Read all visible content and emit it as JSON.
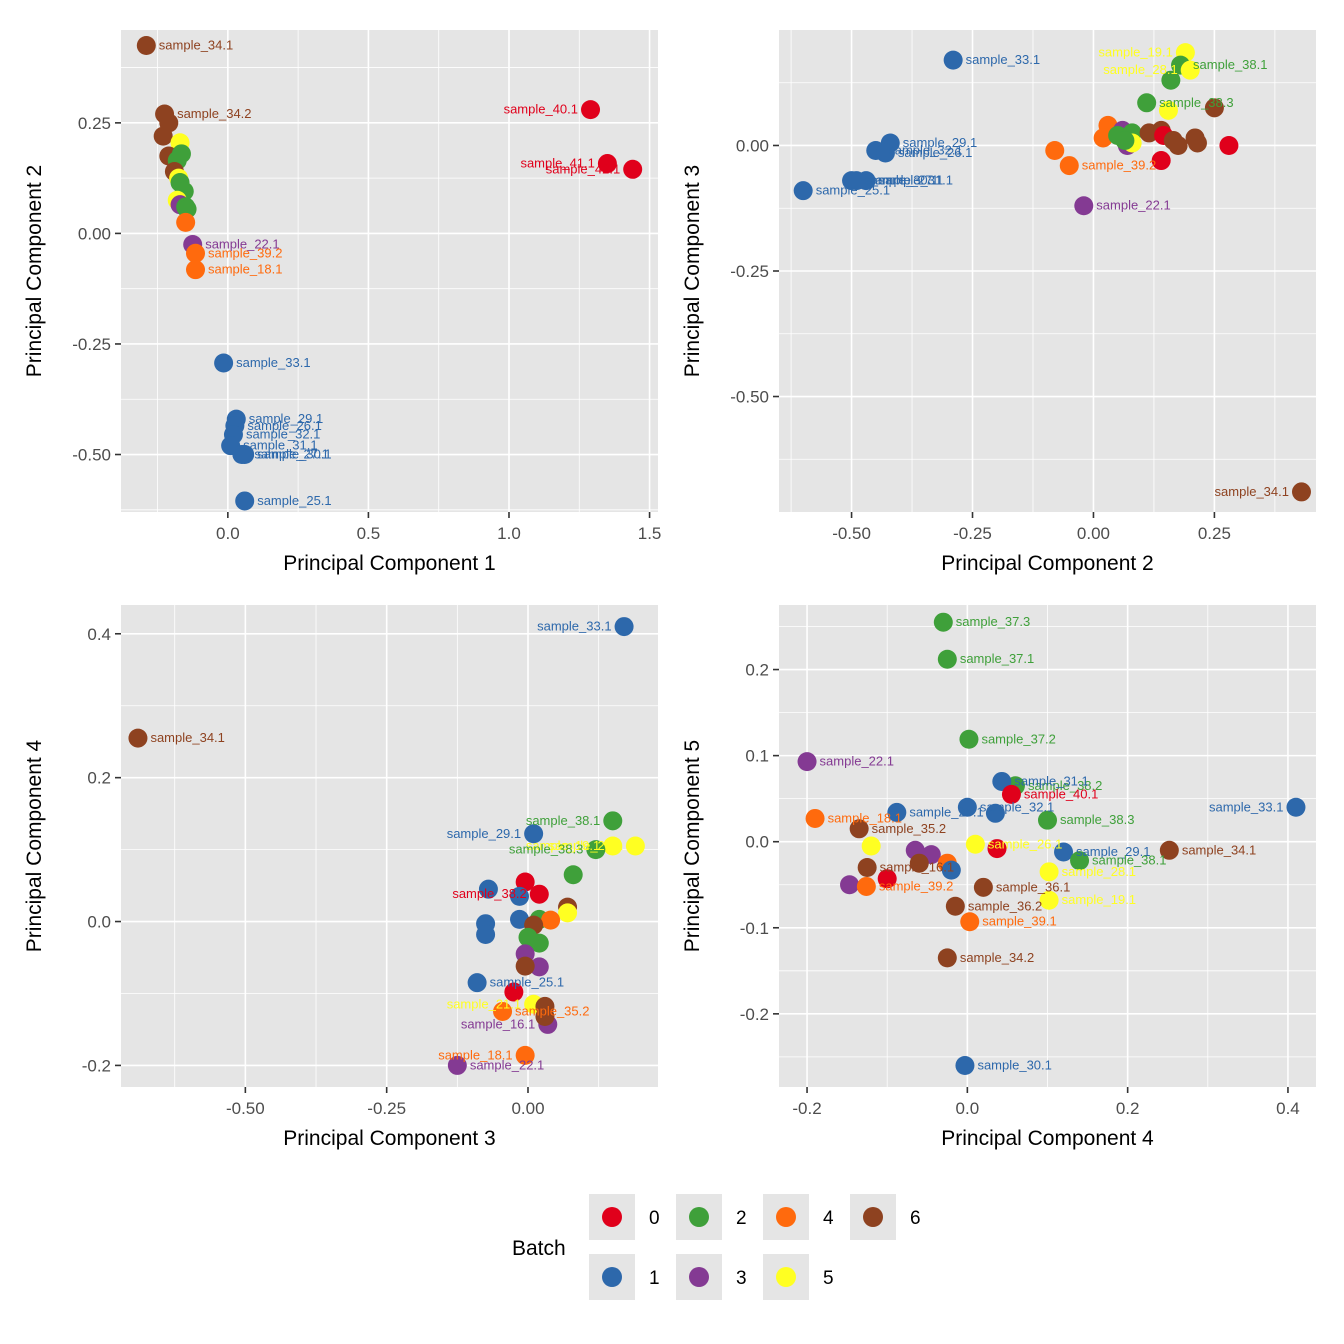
{
  "palette": {
    "0": "#e0001b",
    "1": "#2d68ab",
    "2": "#3fa03a",
    "3": "#843a93",
    "4": "#ff6a0d",
    "5": "#ffff22",
    "6": "#8e4220"
  },
  "legend": {
    "title": "Batch",
    "entries": [
      {
        "label": "0",
        "batch": "0"
      },
      {
        "label": "2",
        "batch": "2"
      },
      {
        "label": "4",
        "batch": "4"
      },
      {
        "label": "6",
        "batch": "6"
      },
      {
        "label": "1",
        "batch": "1"
      },
      {
        "label": "3",
        "batch": "3"
      },
      {
        "label": "5",
        "batch": "5"
      }
    ],
    "position": "bottom"
  },
  "chart_data": [
    {
      "type": "scatter",
      "title": "",
      "xlabel": "Principal Component 1",
      "ylabel": "Principal Component 2",
      "xlim": [
        -0.38,
        1.53
      ],
      "ylim": [
        -0.63,
        0.46
      ],
      "xticks": [
        0.0,
        0.5,
        1.0,
        1.5
      ],
      "xtick_labels": [
        "0.0",
        "0.5",
        "1.0",
        "1.5"
      ],
      "yticks": [
        -0.5,
        -0.25,
        0.0,
        0.25
      ],
      "ytick_labels": [
        "-0.50",
        "-0.25",
        "0.00",
        "0.25"
      ],
      "grid": true,
      "points": [
        {
          "x": -0.29,
          "y": 0.425,
          "batch": "6",
          "label": "sample_34.1"
        },
        {
          "x": -0.225,
          "y": 0.27,
          "batch": "6",
          "label": "sample_34.2"
        },
        {
          "x": -0.21,
          "y": 0.25,
          "batch": "6"
        },
        {
          "x": -0.23,
          "y": 0.22,
          "batch": "6"
        },
        {
          "x": -0.17,
          "y": 0.205,
          "batch": "5"
        },
        {
          "x": -0.21,
          "y": 0.175,
          "batch": "6"
        },
        {
          "x": -0.165,
          "y": 0.18,
          "batch": "2"
        },
        {
          "x": -0.18,
          "y": 0.165,
          "batch": "2"
        },
        {
          "x": -0.19,
          "y": 0.14,
          "batch": "6"
        },
        {
          "x": -0.175,
          "y": 0.125,
          "batch": "5"
        },
        {
          "x": -0.17,
          "y": 0.115,
          "batch": "2"
        },
        {
          "x": -0.155,
          "y": 0.095,
          "batch": "2"
        },
        {
          "x": -0.18,
          "y": 0.075,
          "batch": "5"
        },
        {
          "x": -0.17,
          "y": 0.065,
          "batch": "3"
        },
        {
          "x": -0.15,
          "y": 0.06,
          "batch": "2"
        },
        {
          "x": -0.145,
          "y": 0.055,
          "batch": "2"
        },
        {
          "x": -0.15,
          "y": 0.025,
          "batch": "4"
        },
        {
          "x": -0.125,
          "y": -0.025,
          "batch": "3",
          "label": "sample_22.1"
        },
        {
          "x": -0.115,
          "y": -0.045,
          "batch": "4",
          "label": "sample_39.2"
        },
        {
          "x": -0.115,
          "y": -0.082,
          "batch": "4",
          "label": "sample_18.1"
        },
        {
          "x": 1.29,
          "y": 0.28,
          "batch": "0",
          "label": "sample_40.1"
        },
        {
          "x": 1.35,
          "y": 0.158,
          "batch": "0",
          "label": "sample_41.1"
        },
        {
          "x": 1.44,
          "y": 0.145,
          "batch": "0",
          "label": "sample_42.1"
        },
        {
          "x": -0.015,
          "y": -0.293,
          "batch": "1",
          "label": "sample_33.1"
        },
        {
          "x": 0.03,
          "y": -0.42,
          "batch": "1",
          "label": "sample_29.1"
        },
        {
          "x": 0.025,
          "y": -0.435,
          "batch": "1",
          "label": "sample_26.1"
        },
        {
          "x": 0.02,
          "y": -0.455,
          "batch": "1",
          "label": "sample_32.1"
        },
        {
          "x": 0.01,
          "y": -0.48,
          "batch": "1",
          "label": "sample_31.1"
        },
        {
          "x": 0.05,
          "y": -0.5,
          "batch": "1",
          "label": "sample_27.1"
        },
        {
          "x": 0.06,
          "y": -0.5,
          "batch": "1",
          "label": "sample_30.1"
        },
        {
          "x": 0.06,
          "y": -0.605,
          "batch": "1",
          "label": "sample_25.1"
        }
      ]
    },
    {
      "type": "scatter",
      "title": "",
      "xlabel": "Principal Component 2",
      "ylabel": "Principal Component 3",
      "xlim": [
        -0.65,
        0.46
      ],
      "ylim": [
        -0.73,
        0.23
      ],
      "xticks": [
        -0.5,
        -0.25,
        0.0,
        0.25
      ],
      "xtick_labels": [
        "-0.50",
        "-0.25",
        "0.00",
        "0.25"
      ],
      "yticks": [
        -0.5,
        -0.25,
        0.0
      ],
      "ytick_labels": [
        "-0.50",
        "-0.25",
        "0.00"
      ],
      "grid": true,
      "points": [
        {
          "x": -0.29,
          "y": 0.17,
          "batch": "1",
          "label": "sample_33.1"
        },
        {
          "x": -0.42,
          "y": 0.005,
          "batch": "1",
          "label": "sample_29.1"
        },
        {
          "x": -0.45,
          "y": -0.01,
          "batch": "1",
          "label": "sample_32.1"
        },
        {
          "x": -0.43,
          "y": -0.015,
          "batch": "1",
          "label": "sample_26.1"
        },
        {
          "x": -0.49,
          "y": -0.07,
          "batch": "1",
          "label": "sample_27.1"
        },
        {
          "x": -0.47,
          "y": -0.07,
          "batch": "1",
          "label": "sample_31.1"
        },
        {
          "x": -0.5,
          "y": -0.07,
          "batch": "1",
          "label": "sample_30.1"
        },
        {
          "x": -0.6,
          "y": -0.09,
          "batch": "1",
          "label": "sample_25.1"
        },
        {
          "x": 0.19,
          "y": 0.185,
          "batch": "5",
          "label": "sample_19.1"
        },
        {
          "x": 0.18,
          "y": 0.16,
          "batch": "2",
          "label": "sample_38.1"
        },
        {
          "x": 0.2,
          "y": 0.15,
          "batch": "5",
          "label": "sample_28.1"
        },
        {
          "x": 0.16,
          "y": 0.13,
          "batch": "2"
        },
        {
          "x": 0.11,
          "y": 0.085,
          "batch": "2",
          "label": "sample_38.3"
        },
        {
          "x": 0.155,
          "y": 0.07,
          "batch": "5"
        },
        {
          "x": 0.25,
          "y": 0.075,
          "batch": "6"
        },
        {
          "x": 0.03,
          "y": 0.04,
          "batch": "4"
        },
        {
          "x": 0.02,
          "y": 0.015,
          "batch": "4"
        },
        {
          "x": 0.06,
          "y": 0.03,
          "batch": "3"
        },
        {
          "x": 0.05,
          "y": 0.02,
          "batch": "2"
        },
        {
          "x": 0.08,
          "y": 0.025,
          "batch": "2"
        },
        {
          "x": 0.07,
          "y": 0.0,
          "batch": "3"
        },
        {
          "x": 0.08,
          "y": 0.005,
          "batch": "5"
        },
        {
          "x": 0.065,
          "y": 0.01,
          "batch": "2"
        },
        {
          "x": 0.115,
          "y": 0.025,
          "batch": "6"
        },
        {
          "x": 0.14,
          "y": 0.03,
          "batch": "6"
        },
        {
          "x": 0.145,
          "y": 0.02,
          "batch": "0"
        },
        {
          "x": 0.165,
          "y": 0.01,
          "batch": "6"
        },
        {
          "x": 0.175,
          "y": 0.0,
          "batch": "6"
        },
        {
          "x": 0.21,
          "y": 0.015,
          "batch": "6"
        },
        {
          "x": 0.215,
          "y": 0.005,
          "batch": "6"
        },
        {
          "x": 0.28,
          "y": 0.0,
          "batch": "0"
        },
        {
          "x": 0.14,
          "y": -0.03,
          "batch": "0"
        },
        {
          "x": -0.08,
          "y": -0.01,
          "batch": "4"
        },
        {
          "x": -0.05,
          "y": -0.04,
          "batch": "4",
          "label": "sample_39.2"
        },
        {
          "x": -0.02,
          "y": -0.12,
          "batch": "3",
          "label": "sample_22.1"
        },
        {
          "x": 0.43,
          "y": -0.69,
          "batch": "6",
          "label": "sample_34.1"
        }
      ]
    },
    {
      "type": "scatter",
      "title": "",
      "xlabel": "Principal Component 3",
      "ylabel": "Principal Component 4",
      "xlim": [
        -0.72,
        0.23
      ],
      "ylim": [
        -0.23,
        0.44
      ],
      "xticks": [
        -0.5,
        -0.25,
        0.0
      ],
      "xtick_labels": [
        "-0.50",
        "-0.25",
        "0.00"
      ],
      "yticks": [
        -0.2,
        0.0,
        0.2,
        0.4
      ],
      "ytick_labels": [
        "-0.2",
        "0.0",
        "0.2",
        "0.4"
      ],
      "grid": true,
      "points": [
        {
          "x": 0.17,
          "y": 0.41,
          "batch": "1",
          "label": "sample_33.1"
        },
        {
          "x": -0.69,
          "y": 0.255,
          "batch": "6",
          "label": "sample_34.1"
        },
        {
          "x": 0.15,
          "y": 0.14,
          "batch": "2",
          "label": "sample_38.1"
        },
        {
          "x": 0.01,
          "y": 0.122,
          "batch": "1",
          "label": "sample_29.1"
        },
        {
          "x": 0.15,
          "y": 0.105,
          "batch": "5",
          "label": "sample_19.1"
        },
        {
          "x": 0.19,
          "y": 0.105,
          "batch": "5",
          "label": "sample_28.1"
        },
        {
          "x": 0.12,
          "y": 0.1,
          "batch": "2",
          "label": "sample_38.3"
        },
        {
          "x": 0.08,
          "y": 0.065,
          "batch": "2"
        },
        {
          "x": -0.005,
          "y": 0.055,
          "batch": "0"
        },
        {
          "x": -0.07,
          "y": 0.045,
          "batch": "1"
        },
        {
          "x": -0.015,
          "y": 0.035,
          "batch": "1"
        },
        {
          "x": 0.02,
          "y": 0.038,
          "batch": "0",
          "label": "sample_38.2"
        },
        {
          "x": 0.07,
          "y": 0.02,
          "batch": "6"
        },
        {
          "x": 0.07,
          "y": 0.012,
          "batch": "5"
        },
        {
          "x": -0.015,
          "y": 0.003,
          "batch": "1"
        },
        {
          "x": 0.02,
          "y": 0.003,
          "batch": "2"
        },
        {
          "x": 0.04,
          "y": 0.002,
          "batch": "4"
        },
        {
          "x": 0.01,
          "y": -0.005,
          "batch": "6"
        },
        {
          "x": -0.075,
          "y": -0.003,
          "batch": "1"
        },
        {
          "x": -0.075,
          "y": -0.018,
          "batch": "1"
        },
        {
          "x": 0.0,
          "y": -0.022,
          "batch": "2"
        },
        {
          "x": 0.02,
          "y": -0.03,
          "batch": "2"
        },
        {
          "x": -0.005,
          "y": -0.045,
          "batch": "3"
        },
        {
          "x": 0.02,
          "y": -0.063,
          "batch": "3"
        },
        {
          "x": -0.005,
          "y": -0.062,
          "batch": "6"
        },
        {
          "x": -0.09,
          "y": -0.085,
          "batch": "1",
          "label": "sample_25.1"
        },
        {
          "x": -0.025,
          "y": -0.098,
          "batch": "0"
        },
        {
          "x": 0.01,
          "y": -0.115,
          "batch": "5",
          "label": "sample_21.1"
        },
        {
          "x": 0.03,
          "y": -0.118,
          "batch": "6"
        },
        {
          "x": 0.035,
          "y": -0.143,
          "batch": "3",
          "label": "sample_16.1"
        },
        {
          "x": 0.03,
          "y": -0.132,
          "batch": "6"
        },
        {
          "x": -0.045,
          "y": -0.125,
          "batch": "4",
          "label": "sample_35.2"
        },
        {
          "x": -0.005,
          "y": -0.186,
          "batch": "4",
          "label": "sample_18.1"
        },
        {
          "x": -0.125,
          "y": -0.2,
          "batch": "3",
          "label": "sample_22.1"
        }
      ]
    },
    {
      "type": "scatter",
      "title": "",
      "xlabel": "Principal Component 4",
      "ylabel": "Principal Component 5",
      "xlim": [
        -0.235,
        0.435
      ],
      "ylim": [
        -0.285,
        0.275
      ],
      "xticks": [
        -0.2,
        0.0,
        0.2,
        0.4
      ],
      "xtick_labels": [
        "-0.2",
        "0.0",
        "0.2",
        "0.4"
      ],
      "yticks": [
        -0.2,
        -0.1,
        0.0,
        0.1,
        0.2
      ],
      "ytick_labels": [
        "-0.2",
        "-0.1",
        "0.0",
        "0.1",
        "0.2"
      ],
      "grid": true,
      "points": [
        {
          "x": -0.03,
          "y": 0.255,
          "batch": "2",
          "label": "sample_37.3"
        },
        {
          "x": -0.025,
          "y": 0.212,
          "batch": "2",
          "label": "sample_37.1"
        },
        {
          "x": 0.002,
          "y": 0.119,
          "batch": "2",
          "label": "sample_37.2"
        },
        {
          "x": -0.2,
          "y": 0.093,
          "batch": "3",
          "label": "sample_22.1"
        },
        {
          "x": 0.06,
          "y": 0.065,
          "batch": "2",
          "label": "sample_38.2"
        },
        {
          "x": 0.043,
          "y": 0.07,
          "batch": "1",
          "label": "sample_31.1"
        },
        {
          "x": 0.055,
          "y": 0.055,
          "batch": "0",
          "label": "sample_40.1"
        },
        {
          "x": -0.088,
          "y": 0.034,
          "batch": "1",
          "label": "sample_25.1"
        },
        {
          "x": 0.0,
          "y": 0.04,
          "batch": "1",
          "label": "sample_32.1"
        },
        {
          "x": 0.035,
          "y": 0.033,
          "batch": "1"
        },
        {
          "x": 0.1,
          "y": 0.025,
          "batch": "2",
          "label": "sample_38.3"
        },
        {
          "x": -0.19,
          "y": 0.027,
          "batch": "4",
          "label": "sample_18.1"
        },
        {
          "x": -0.135,
          "y": 0.015,
          "batch": "6",
          "label": "sample_35.2"
        },
        {
          "x": -0.12,
          "y": -0.005,
          "batch": "5"
        },
        {
          "x": -0.065,
          "y": -0.01,
          "batch": "3"
        },
        {
          "x": -0.045,
          "y": -0.015,
          "batch": "3"
        },
        {
          "x": -0.06,
          "y": -0.025,
          "batch": "6"
        },
        {
          "x": -0.025,
          "y": -0.025,
          "batch": "4"
        },
        {
          "x": -0.02,
          "y": -0.033,
          "batch": "1"
        },
        {
          "x": 0.01,
          "y": -0.003,
          "batch": "5",
          "label": "sample_26.1"
        },
        {
          "x": 0.037,
          "y": -0.008,
          "batch": "0"
        },
        {
          "x": 0.12,
          "y": -0.012,
          "batch": "1",
          "label": "sample_29.1"
        },
        {
          "x": 0.14,
          "y": -0.022,
          "batch": "2",
          "label": "sample_38.1"
        },
        {
          "x": 0.252,
          "y": -0.01,
          "batch": "6",
          "label": "sample_34.1"
        },
        {
          "x": 0.41,
          "y": 0.04,
          "batch": "1",
          "label": "sample_33.1"
        },
        {
          "x": -0.125,
          "y": -0.03,
          "batch": "6",
          "label": "sample_16.1"
        },
        {
          "x": -0.1,
          "y": -0.043,
          "batch": "0"
        },
        {
          "x": -0.147,
          "y": -0.05,
          "batch": "3"
        },
        {
          "x": -0.126,
          "y": -0.052,
          "batch": "4",
          "label": "sample_39.2"
        },
        {
          "x": 0.102,
          "y": -0.035,
          "batch": "5",
          "label": "sample_28.1"
        },
        {
          "x": 0.102,
          "y": -0.068,
          "batch": "5",
          "label": "sample_19.1"
        },
        {
          "x": 0.02,
          "y": -0.053,
          "batch": "6",
          "label": "sample_36.1"
        },
        {
          "x": -0.015,
          "y": -0.075,
          "batch": "6",
          "label": "sample_36.2"
        },
        {
          "x": 0.003,
          "y": -0.093,
          "batch": "4",
          "label": "sample_39.1"
        },
        {
          "x": -0.025,
          "y": -0.135,
          "batch": "6",
          "label": "sample_34.2"
        },
        {
          "x": -0.003,
          "y": -0.26,
          "batch": "1",
          "label": "sample_30.1"
        }
      ]
    }
  ]
}
